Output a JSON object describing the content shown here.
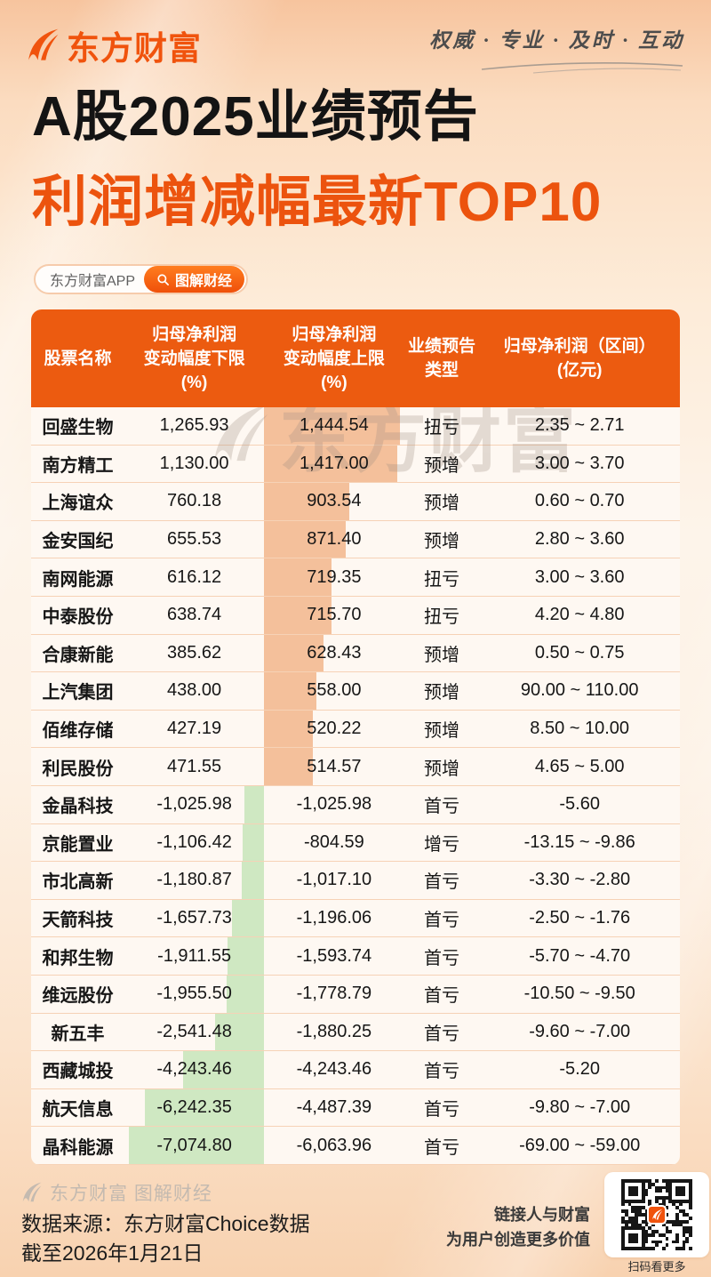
{
  "header": {
    "logo_text": "东方财富",
    "tagline": "权威 · 专业 · 及时 · 互动"
  },
  "title": {
    "line1": "A股2025业绩预告",
    "line2": "利润增减幅最新TOP10"
  },
  "pills": {
    "app_label": "东方财富APP",
    "channel_label": "图解财经"
  },
  "table_header_lines": [
    "股票名称",
    "归母净利润\n变动幅度下限\n(%)",
    "归母净利润\n变动幅度上限\n(%)",
    "业绩预告\n类型",
    "归母净利润（区间）\n(亿元)"
  ],
  "chart_data": {
    "type": "table",
    "title": "A股2025业绩预告 利润增减幅最新TOP10",
    "columns": [
      "股票名称",
      "归母净利润变动幅度下限(%)",
      "归母净利润变动幅度上限(%)",
      "业绩预告类型",
      "归母净利润（区间）(亿元)"
    ],
    "bar_encoding": {
      "positive_bar_on": "upper",
      "negative_bar_on": "lower",
      "positive_max": 1444.54,
      "negative_max_abs": 7074.8,
      "max_bar_width_pct": 97
    },
    "rows": [
      {
        "name": "回盛生物",
        "lower_display": "1,265.93",
        "lower": 1265.93,
        "upper_display": "1,444.54",
        "upper": 1444.54,
        "type": "扭亏",
        "range": "2.35 ~ 2.71"
      },
      {
        "name": "南方精工",
        "lower_display": "1,130.00",
        "lower": 1130.0,
        "upper_display": "1,417.00",
        "upper": 1417.0,
        "type": "预增",
        "range": "3.00 ~ 3.70"
      },
      {
        "name": "上海谊众",
        "lower_display": "760.18",
        "lower": 760.18,
        "upper_display": "903.54",
        "upper": 903.54,
        "type": "预增",
        "range": "0.60 ~ 0.70"
      },
      {
        "name": "金安国纪",
        "lower_display": "655.53",
        "lower": 655.53,
        "upper_display": "871.40",
        "upper": 871.4,
        "type": "预增",
        "range": "2.80 ~ 3.60"
      },
      {
        "name": "南网能源",
        "lower_display": "616.12",
        "lower": 616.12,
        "upper_display": "719.35",
        "upper": 719.35,
        "type": "扭亏",
        "range": "3.00 ~ 3.60"
      },
      {
        "name": "中泰股份",
        "lower_display": "638.74",
        "lower": 638.74,
        "upper_display": "715.70",
        "upper": 715.7,
        "type": "扭亏",
        "range": "4.20 ~ 4.80"
      },
      {
        "name": "合康新能",
        "lower_display": "385.62",
        "lower": 385.62,
        "upper_display": "628.43",
        "upper": 628.43,
        "type": "预增",
        "range": "0.50 ~ 0.75"
      },
      {
        "name": "上汽集团",
        "lower_display": "438.00",
        "lower": 438.0,
        "upper_display": "558.00",
        "upper": 558.0,
        "type": "预增",
        "range": "90.00 ~ 110.00"
      },
      {
        "name": "佰维存储",
        "lower_display": "427.19",
        "lower": 427.19,
        "upper_display": "520.22",
        "upper": 520.22,
        "type": "预增",
        "range": "8.50 ~ 10.00"
      },
      {
        "name": "利民股份",
        "lower_display": "471.55",
        "lower": 471.55,
        "upper_display": "514.57",
        "upper": 514.57,
        "type": "预增",
        "range": "4.65 ~ 5.00"
      },
      {
        "name": "金晶科技",
        "lower_display": "-1,025.98",
        "lower": -1025.98,
        "upper_display": "-1,025.98",
        "upper": -1025.98,
        "type": "首亏",
        "range": "-5.60"
      },
      {
        "name": "京能置业",
        "lower_display": "-1,106.42",
        "lower": -1106.42,
        "upper_display": "-804.59",
        "upper": -804.59,
        "type": "增亏",
        "range": "-13.15 ~ -9.86"
      },
      {
        "name": "市北高新",
        "lower_display": "-1,180.87",
        "lower": -1180.87,
        "upper_display": "-1,017.10",
        "upper": -1017.1,
        "type": "首亏",
        "range": "-3.30 ~ -2.80"
      },
      {
        "name": "天箭科技",
        "lower_display": "-1,657.73",
        "lower": -1657.73,
        "upper_display": "-1,196.06",
        "upper": -1196.06,
        "type": "首亏",
        "range": "-2.50 ~ -1.76"
      },
      {
        "name": "和邦生物",
        "lower_display": "-1,911.55",
        "lower": -1911.55,
        "upper_display": "-1,593.74",
        "upper": -1593.74,
        "type": "首亏",
        "range": "-5.70 ~ -4.70"
      },
      {
        "name": "维远股份",
        "lower_display": "-1,955.50",
        "lower": -1955.5,
        "upper_display": "-1,778.79",
        "upper": -1778.79,
        "type": "首亏",
        "range": "-10.50 ~ -9.50"
      },
      {
        "name": "新五丰",
        "lower_display": "-2,541.48",
        "lower": -2541.48,
        "upper_display": "-1,880.25",
        "upper": -1880.25,
        "type": "首亏",
        "range": "-9.60 ~ -7.00"
      },
      {
        "name": "西藏城投",
        "lower_display": "-4,243.46",
        "lower": -4243.46,
        "upper_display": "-4,243.46",
        "upper": -4243.46,
        "type": "首亏",
        "range": "-5.20"
      },
      {
        "name": "航天信息",
        "lower_display": "-6,242.35",
        "lower": -6242.35,
        "upper_display": "-4,487.39",
        "upper": -4487.39,
        "type": "首亏",
        "range": "-9.80 ~ -7.00"
      },
      {
        "name": "晶科能源",
        "lower_display": "-7,074.80",
        "lower": -7074.8,
        "upper_display": "-6,063.96",
        "upper": -6063.96,
        "type": "首亏",
        "range": "-69.00 ~ -59.00"
      }
    ]
  },
  "watermarks": {
    "table": "东方财富",
    "footer": "东方财富 图解财经"
  },
  "footer": {
    "source_line1": "数据来源：东方财富Choice数据",
    "source_line2": "截至2026年1月21日",
    "slogan_line1": "链接人与财富",
    "slogan_line2": "为用户创造更多价值",
    "qr_caption": "扫码看更多"
  },
  "colors": {
    "accent": "#ec5b10",
    "title_accent": "#ec530e",
    "header_bg": "#ec5b10",
    "positive_bar": "#f4c09b",
    "negative_bar": "#cfe8c2",
    "row_separator": "#f6d2b6",
    "row_bg": "#fef8f2"
  }
}
